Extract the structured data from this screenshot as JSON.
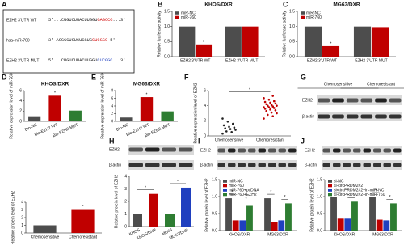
{
  "panel_labels": [
    "A",
    "B",
    "C",
    "D",
    "E",
    "F",
    "G",
    "H",
    "I",
    "J"
  ],
  "sequence_panel": {
    "rows": [
      {
        "label": "EZH2 3'UTR WT",
        "parts": [
          "5'...CUGUCUUACUUGGU",
          "GAGCCG",
          "...3'"
        ]
      },
      {
        "label": "hsa-miR-760",
        "parts": [
          "3' AGGGGUGUCUGGUG",
          "CUCGGC",
          " 5'"
        ]
      },
      {
        "label": "EZH2 3'UTR MUT",
        "parts": [
          "5'...CUGUCUUACUUGGU",
          "CUCGGC",
          "...3'"
        ]
      }
    ]
  },
  "blots": [
    {
      "groups": [
        "Chemosensitive",
        "Chemoresistant"
      ],
      "rows": [
        "EZH2",
        "β-actin"
      ]
    },
    {
      "rows": [
        "EZH2",
        "β-actin"
      ]
    },
    {
      "rows": [
        "EZH2",
        "β-actin"
      ]
    },
    {
      "rows": [
        "EZH2",
        "β-actin"
      ]
    }
  ],
  "chart_data": [
    {
      "type": "bar",
      "title": "KHOS/DXR",
      "ylabel": "Relative luciferase activity",
      "categories": [
        "EZH2 3'UTR WT",
        "EZH2 3'UTR MUT"
      ],
      "series": [
        {
          "name": "miR-NC",
          "color": "#4d4d4d",
          "values": [
            1.0,
            1.0
          ]
        },
        {
          "name": "miR-760",
          "color": "#c00000",
          "values": [
            0.38,
            1.0
          ]
        }
      ],
      "ylim": [
        0,
        1.5
      ],
      "yticks": [
        {
          "value": 0,
          "label": "0.0"
        },
        0.5,
        {
          "value": 1,
          "label": "1.0"
        },
        1.5
      ],
      "annotation": "*",
      "legend": "upper-left"
    },
    {
      "type": "bar",
      "title": "MG63/DXR",
      "ylabel": "Relative luciferase activity",
      "categories": [
        "EZH2 3'UTR WT",
        "EZH2 3'UTR MUT"
      ],
      "series": [
        {
          "name": "miR-NC",
          "color": "#4d4d4d",
          "values": [
            1.0,
            1.0
          ]
        },
        {
          "name": "miR-760",
          "color": "#c00000",
          "values": [
            0.35,
            0.98
          ]
        }
      ],
      "ylim": [
        0,
        1.5
      ],
      "yticks": [
        {
          "value": 0,
          "label": "0.0"
        },
        0.5,
        {
          "value": 1,
          "label": "1.0"
        },
        1.5
      ],
      "annotation": "*",
      "legend": "upper-left"
    },
    {
      "type": "bar",
      "title": "KHOS/DXR",
      "ylabel": "Relative expression level of miR-760",
      "categories": [
        "Bio-NC",
        "Bio-EZH2 WT",
        "Bio-EZH2 MUT"
      ],
      "values": [
        1.0,
        5.0,
        2.1
      ],
      "colors": [
        "#4d4d4d",
        "#c00000",
        "#2e7d32"
      ],
      "ylim": [
        0,
        6
      ],
      "yticks": [
        0,
        2,
        4,
        6
      ],
      "annotation": "*"
    },
    {
      "type": "bar",
      "title": "MG63/DXR",
      "ylabel": "Relative expression level of miR-760",
      "categories": [
        "Bio-NC",
        "Bio-EZH2 WT",
        "Bio-EZH2 MUT"
      ],
      "values": [
        1.0,
        6.3,
        2.6
      ],
      "colors": [
        "#4d4d4d",
        "#c00000",
        "#2e7d32"
      ],
      "ylim": [
        0,
        8
      ],
      "yticks": [
        0,
        2,
        4,
        6,
        8
      ],
      "annotation": "*"
    },
    {
      "type": "strip",
      "ylabel": "Relative expression level of EZH2",
      "categories": [
        "Chemosensitive",
        "Chemoresistant"
      ],
      "values": [
        [
          0.3,
          0.5,
          0.6,
          0.8,
          0.9,
          1.0,
          1.1,
          1.2,
          1.4,
          1.6,
          1.9,
          2.3
        ],
        [
          2.3,
          2.6,
          2.8,
          3.0,
          3.1,
          3.3,
          3.4,
          3.5,
          3.6,
          3.7,
          3.8,
          3.8,
          3.9,
          4.0,
          4.0,
          4.1,
          4.2,
          4.3,
          4.4,
          4.5,
          4.6,
          4.8,
          5.0,
          5.3
        ]
      ],
      "colors": [
        "#222222",
        "#c00000"
      ],
      "ylim": [
        0,
        6
      ],
      "yticks": [
        0,
        2,
        4,
        6
      ],
      "annotation": "*"
    },
    {
      "type": "bar",
      "ylabel": "Relative protein level of EZH2",
      "categories": [
        "Chemosensitive",
        "Chemoresistant"
      ],
      "values": [
        1.0,
        3.1
      ],
      "colors": [
        "#4d4d4d",
        "#c00000"
      ],
      "ylim": [
        0,
        4
      ],
      "yticks": [
        0,
        1,
        2,
        3,
        4
      ],
      "annotation": "*"
    },
    {
      "type": "bar",
      "ylabel": "Relative protein level of EZH2",
      "categories": [
        "KHOS",
        "KHOS/DXR",
        "MG63",
        "MG63/DXR"
      ],
      "values": [
        1.0,
        2.6,
        1.0,
        3.1
      ],
      "colors": [
        "#4d4d4d",
        "#c00000",
        "#2e7d32",
        "#1f3fbf"
      ],
      "ylim": [
        0,
        4
      ],
      "yticks": [
        0,
        1,
        2,
        3,
        4
      ],
      "annotation": "*"
    },
    {
      "type": "bar",
      "ylabel": "Relative protein level of EZH2",
      "categories": [
        "KHOS/DXR",
        "MG63/DXR"
      ],
      "series": [
        {
          "name": "miR-NC",
          "color": "#4d4d4d",
          "values": [
            0.95,
            0.95
          ]
        },
        {
          "name": "miR-760",
          "color": "#c00000",
          "values": [
            0.3,
            0.25
          ]
        },
        {
          "name": "miR-760+pcDNA",
          "color": "#1f3fbf",
          "values": [
            0.3,
            0.3
          ]
        },
        {
          "name": "miR-760+EZH2",
          "color": "#2e7d32",
          "values": [
            0.75,
            0.8
          ]
        }
      ],
      "ylim": [
        0,
        1.5
      ],
      "yticks": [
        {
          "value": 0,
          "label": "0.0"
        },
        0.5,
        {
          "value": 1,
          "label": "1.0"
        },
        1.5
      ],
      "annotation": "*",
      "legend": "upper-left"
    },
    {
      "type": "bar",
      "ylabel": "Relative protein level of EZH2",
      "categories": [
        "KHOS/DXR",
        "MG63/DXR"
      ],
      "series": [
        {
          "name": "si-NC",
          "color": "#4d4d4d",
          "values": [
            1.0,
            1.0
          ]
        },
        {
          "name": "si-circPRDM2#2",
          "color": "#c00000",
          "values": [
            0.35,
            0.32
          ]
        },
        {
          "name": "si-circPRDM2#2+in-miR-NC",
          "color": "#1f3fbf",
          "values": [
            0.35,
            0.3
          ]
        },
        {
          "name": "si-circPRDM2#2+in-miR-760",
          "color": "#2e7d32",
          "values": [
            0.85,
            0.8
          ]
        }
      ],
      "ylim": [
        0,
        1.5
      ],
      "yticks": [
        {
          "value": 0,
          "label": "0.0"
        },
        0.5,
        {
          "value": 1,
          "label": "1.0"
        },
        1.5
      ],
      "annotation": "*",
      "legend": "upper-left"
    }
  ]
}
